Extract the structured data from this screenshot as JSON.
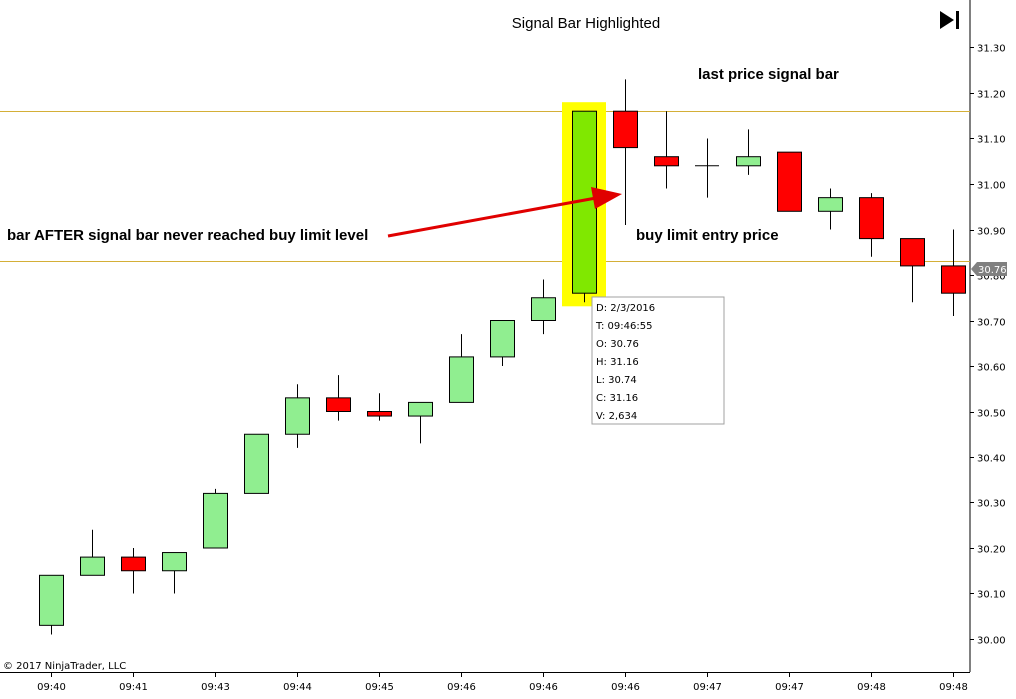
{
  "chart_data": {
    "type": "candlestick",
    "title": "Signal Bar Highlighted",
    "ylim": [
      29.96,
      31.3
    ],
    "y_ticks": [
      30.0,
      30.1,
      30.2,
      30.3,
      30.4,
      30.5,
      30.6,
      30.7,
      30.8,
      30.9,
      31.0,
      31.1,
      31.2,
      31.3
    ],
    "y_tick_labels": [
      "30.00",
      "30.10",
      "30.20",
      "30.30",
      "30.40",
      "30.50",
      "30.60",
      "30.70",
      "30.80",
      "30.90",
      "31.00",
      "31.10",
      "31.20",
      "31.30"
    ],
    "x_tick_labels": [
      "09:40",
      "09:41",
      "09:43",
      "09:44",
      "09:45",
      "09:46",
      "09:46",
      "09:46",
      "09:47",
      "09:47",
      "09:48",
      "09:48"
    ],
    "candles": [
      {
        "o": 30.03,
        "h": 30.14,
        "l": 30.01,
        "c": 30.14
      },
      {
        "o": 30.14,
        "h": 30.24,
        "l": 30.14,
        "c": 30.18
      },
      {
        "o": 30.18,
        "h": 30.2,
        "l": 30.1,
        "c": 30.15
      },
      {
        "o": 30.15,
        "h": 30.19,
        "l": 30.1,
        "c": 30.19
      },
      {
        "o": 30.2,
        "h": 30.33,
        "l": 30.2,
        "c": 30.32
      },
      {
        "o": 30.32,
        "h": 30.45,
        "l": 30.32,
        "c": 30.45
      },
      {
        "o": 30.45,
        "h": 30.56,
        "l": 30.42,
        "c": 30.53
      },
      {
        "o": 30.53,
        "h": 30.58,
        "l": 30.48,
        "c": 30.5
      },
      {
        "o": 30.5,
        "h": 30.54,
        "l": 30.48,
        "c": 30.49
      },
      {
        "o": 30.49,
        "h": 30.52,
        "l": 30.43,
        "c": 30.52
      },
      {
        "o": 30.52,
        "h": 30.67,
        "l": 30.52,
        "c": 30.62
      },
      {
        "o": 30.62,
        "h": 30.7,
        "l": 30.6,
        "c": 30.7
      },
      {
        "o": 30.7,
        "h": 30.79,
        "l": 30.67,
        "c": 30.75
      },
      {
        "o": 30.76,
        "h": 31.16,
        "l": 30.74,
        "c": 31.16,
        "signal": true
      },
      {
        "o": 31.16,
        "h": 31.23,
        "l": 30.91,
        "c": 31.08
      },
      {
        "o": 31.06,
        "h": 31.16,
        "l": 30.99,
        "c": 31.04
      },
      {
        "o": 31.04,
        "h": 31.1,
        "l": 30.97,
        "c": 31.04
      },
      {
        "o": 31.04,
        "h": 31.12,
        "l": 31.02,
        "c": 31.06
      },
      {
        "o": 31.07,
        "h": 31.07,
        "l": 30.94,
        "c": 30.94
      },
      {
        "o": 30.94,
        "h": 30.99,
        "l": 30.9,
        "c": 30.97
      },
      {
        "o": 30.97,
        "h": 30.98,
        "l": 30.84,
        "c": 30.88
      },
      {
        "o": 30.88,
        "h": 30.88,
        "l": 30.74,
        "c": 30.82
      },
      {
        "o": 30.82,
        "h": 30.9,
        "l": 30.71,
        "c": 30.76
      }
    ],
    "horizontal_lines": [
      {
        "value": 31.16,
        "label": "last price signal bar"
      },
      {
        "value": 30.83,
        "label": "buy limit entry price"
      }
    ],
    "annotation_arrow": {
      "text": "bar AFTER signal bar never reached buy limit level"
    },
    "last_price": "30.76",
    "colors": {
      "up": "#90ee90",
      "down": "#ff0000",
      "signal_body": "#80e800",
      "highlight": "#ffff00",
      "level_line": "#d4af37",
      "arrow": "#e00000",
      "price_marker": "#808080"
    },
    "tooltip": {
      "date": "D: 2/3/2016",
      "time": "T: 09:46:55",
      "open": "O: 30.76",
      "high": "H: 31.16",
      "low": "L: 30.74",
      "close": "C: 31.16",
      "volume": "V: 2,634"
    },
    "copyright": "© 2017 NinjaTrader, LLC"
  },
  "toolbar": {
    "goto_end_icon": "skip-to-end-icon"
  }
}
